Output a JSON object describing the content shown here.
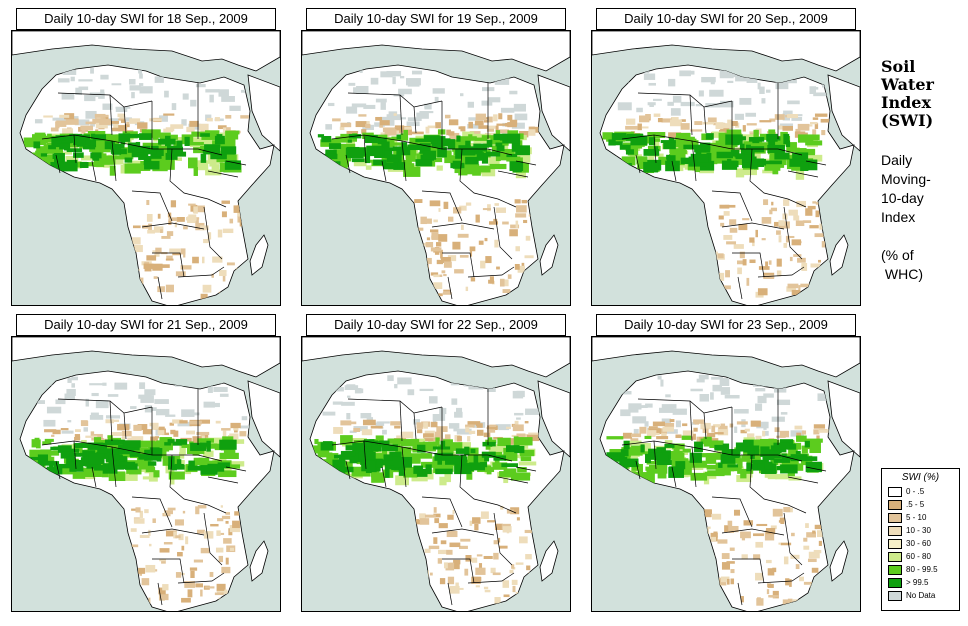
{
  "panels": [
    {
      "title": "Daily 10-day SWI for  18 Sep., 2009"
    },
    {
      "title": "Daily 10-day SWI for  19 Sep., 2009"
    },
    {
      "title": "Daily 10-day SWI for  20 Sep., 2009"
    },
    {
      "title": "Daily 10-day SWI for  21 Sep., 2009"
    },
    {
      "title": "Daily 10-day SWI for  22 Sep., 2009"
    },
    {
      "title": "Daily 10-day SWI for  23 Sep., 2009"
    }
  ],
  "side_title": [
    "Soil",
    "Water",
    "Index",
    "(SWI)"
  ],
  "side_subtitle": [
    "Daily",
    "Moving-",
    "10-day",
    "Index",
    "",
    "(% of",
    " WHC)"
  ],
  "legend": {
    "title": "SWI (%)",
    "items": [
      {
        "label": "0 - .5",
        "color": "#ffffff"
      },
      {
        "label": ".5 - 5",
        "color": "#d8b07a"
      },
      {
        "label": "5 - 10",
        "color": "#e2c49a"
      },
      {
        "label": "10 - 30",
        "color": "#eeddbb"
      },
      {
        "label": "30 - 60",
        "color": "#f6f0c8"
      },
      {
        "label": "60 - 80",
        "color": "#cdeb8b"
      },
      {
        "label": "80 - 99.5",
        "color": "#5ccc1e"
      },
      {
        "label": "> 99.5",
        "color": "#0fa00f"
      },
      {
        "label": "No Data",
        "color": "#cfd8d8"
      }
    ]
  },
  "colors": {
    "ocean": "#d2e1dc",
    "land": "#ffffff",
    "border": "#000000"
  }
}
